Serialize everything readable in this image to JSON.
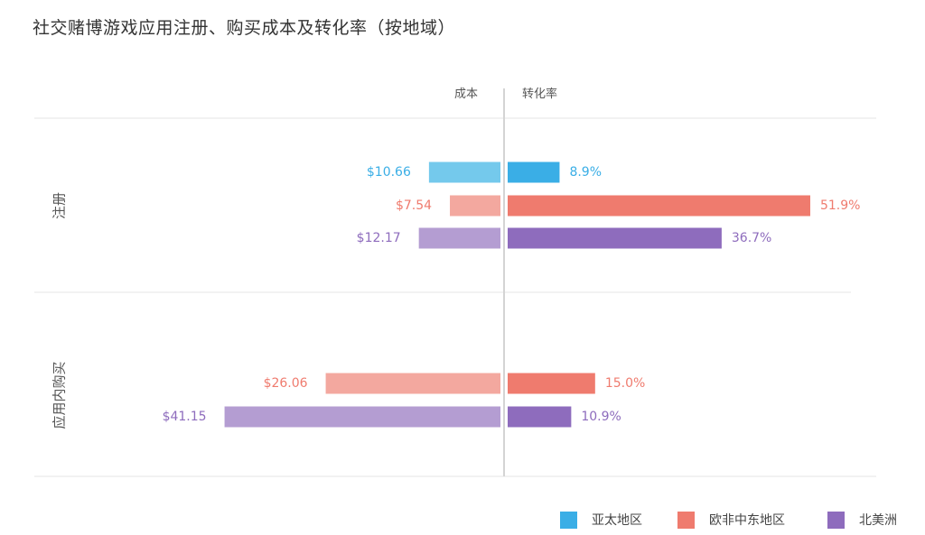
{
  "title": "社交赌博游戏应用注册、购买成本及转化率（按地域）",
  "chart_data": {
    "type": "bar",
    "orientation": "horizontal-diverging",
    "left_header": "成本",
    "right_header": "转化率",
    "left_axis_max": 45,
    "right_axis_max": 55,
    "groups": [
      {
        "label": "注册",
        "rows": [
          {
            "region": "亚太地区",
            "cost": 10.66,
            "cost_label": "$10.66",
            "rate": 8.9,
            "rate_label": "8.9%"
          },
          {
            "region": "欧非中东地区",
            "cost": 7.54,
            "cost_label": "$7.54",
            "rate": 51.9,
            "rate_label": "51.9%"
          },
          {
            "region": "北美洲",
            "cost": 12.17,
            "cost_label": "$12.17",
            "rate": 36.7,
            "rate_label": "36.7%"
          }
        ]
      },
      {
        "label": "应用内购买",
        "rows": [
          {
            "region": "欧非中东地区",
            "cost": 26.06,
            "cost_label": "$26.06",
            "rate": 15.0,
            "rate_label": "15.0%"
          },
          {
            "region": "北美洲",
            "cost": 41.15,
            "cost_label": "$41.15",
            "rate": 10.9,
            "rate_label": "10.9%"
          }
        ]
      }
    ],
    "legend": [
      {
        "name": "亚太地区",
        "color": "#3aaee6",
        "light": "#74c9ec"
      },
      {
        "name": "欧非中东地区",
        "color": "#ef7b6e",
        "light": "#f3a89f"
      },
      {
        "name": "北美洲",
        "color": "#8e6cbd",
        "light": "#b49dd2"
      }
    ]
  }
}
